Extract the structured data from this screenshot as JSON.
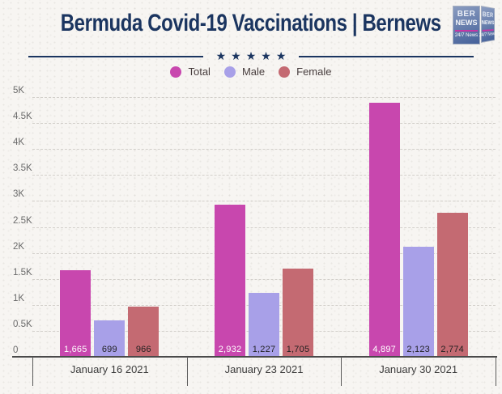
{
  "header": {
    "title": "Bermuda Covid-19 Vaccinations | Bernews",
    "stars": "★★★★★",
    "logo": {
      "line1": "BER",
      "line2": "NEWS",
      "tagline": "24/7 News"
    }
  },
  "colors": {
    "background": "#f7f5f2",
    "navy": "#1b3560",
    "total_bar": "#c847ae",
    "male_bar": "#a8a0e8",
    "female_bar": "#c46a72",
    "gridline": "#d2cfca",
    "axis": "#4a4a4a",
    "ytick_label": "#6a6a6a",
    "xtick_label": "#3c3c3c"
  },
  "chart_data": {
    "type": "bar",
    "title": "Bermuda Covid-19 Vaccinations | Bernews",
    "categories": [
      "January 16 2021",
      "January 23 2021",
      "January 30 2021"
    ],
    "series": [
      {
        "name": "Total",
        "color": "#c847ae",
        "label_color": "#ffffff",
        "values": [
          1665,
          2932,
          4897
        ]
      },
      {
        "name": "Male",
        "color": "#a8a0e8",
        "label_color": "#1f1f1f",
        "values": [
          699,
          1227,
          2123
        ]
      },
      {
        "name": "Female",
        "color": "#c46a72",
        "label_color": "#1f1f1f",
        "values": [
          966,
          1705,
          2774
        ]
      }
    ],
    "value_labels": [
      [
        "1,665",
        "2,932",
        "4,897"
      ],
      [
        "699",
        "1,227",
        "2,123"
      ],
      [
        "966",
        "1,705",
        "2,774"
      ]
    ],
    "xlabel": "",
    "ylabel": "",
    "ylim": [
      0,
      5000
    ],
    "ytick_step": 500,
    "ytick_labels": [
      "0",
      "0.5K",
      "1K",
      "1.5K",
      "2K",
      "2.5K",
      "3K",
      "3.5K",
      "4K",
      "4.5K",
      "5K"
    ],
    "grid": "horizontal-dashed",
    "legend_position": "top-center"
  }
}
